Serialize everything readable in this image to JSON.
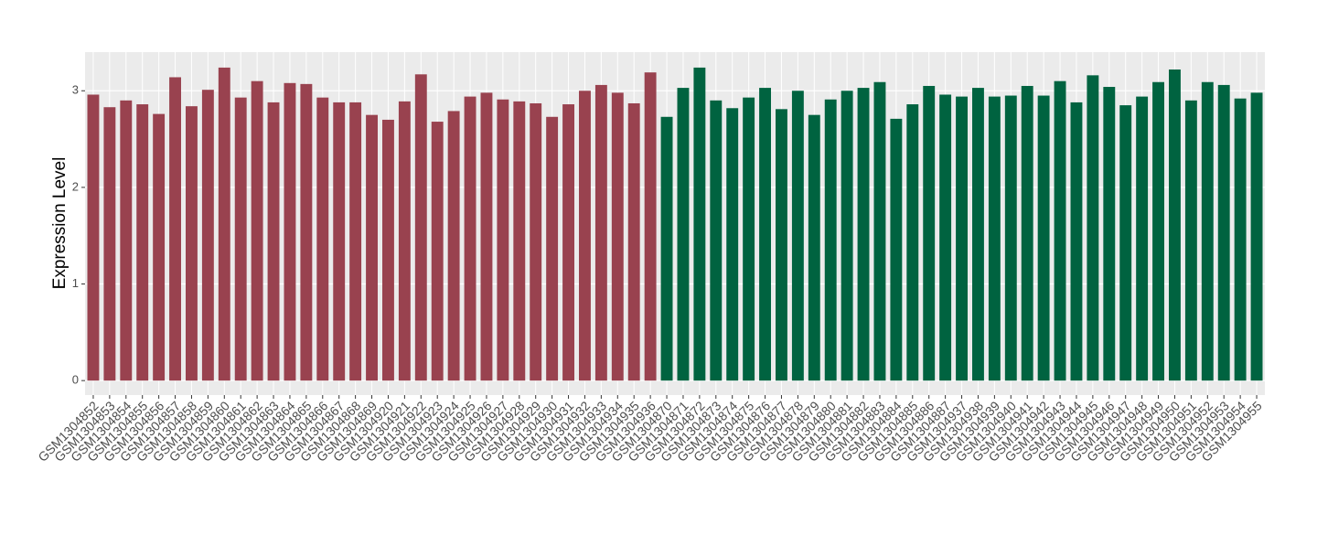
{
  "chart_data": {
    "type": "bar",
    "y_label": "Expression Level",
    "categories": [
      "GSM1304852",
      "GSM1304853",
      "GSM1304854",
      "GSM1304855",
      "GSM1304856",
      "GSM1304857",
      "GSM1304858",
      "GSM1304859",
      "GSM1304860",
      "GSM1304861",
      "GSM1304862",
      "GSM1304863",
      "GSM1304864",
      "GSM1304865",
      "GSM1304866",
      "GSM1304867",
      "GSM1304868",
      "GSM1304869",
      "GSM1304920",
      "GSM1304921",
      "GSM1304922",
      "GSM1304923",
      "GSM1304924",
      "GSM1304925",
      "GSM1304926",
      "GSM1304927",
      "GSM1304928",
      "GSM1304929",
      "GSM1304930",
      "GSM1304931",
      "GSM1304932",
      "GSM1304933",
      "GSM1304934",
      "GSM1304935",
      "GSM1304936",
      "GSM1304870",
      "GSM1304871",
      "GSM1304872",
      "GSM1304873",
      "GSM1304874",
      "GSM1304875",
      "GSM1304876",
      "GSM1304877",
      "GSM1304878",
      "GSM1304879",
      "GSM1304880",
      "GSM1304881",
      "GSM1304882",
      "GSM1304883",
      "GSM1304884",
      "GSM1304885",
      "GSM1304886",
      "GSM1304887",
      "GSM1304937",
      "GSM1304938",
      "GSM1304939",
      "GSM1304940",
      "GSM1304941",
      "GSM1304942",
      "GSM1304943",
      "GSM1304944",
      "GSM1304945",
      "GSM1304946",
      "GSM1304947",
      "GSM1304948",
      "GSM1304949",
      "GSM1304950",
      "GSM1304951",
      "GSM1304952",
      "GSM1304953",
      "GSM1304954",
      "GSM1304955"
    ],
    "series": [
      {
        "color": "#99424f",
        "values": [
          2.96,
          2.83,
          2.9,
          2.86,
          2.76,
          3.14,
          2.84,
          3.01,
          3.24,
          2.93,
          3.1,
          2.88,
          3.08,
          3.07,
          2.93,
          2.88,
          2.88,
          2.75,
          2.7,
          2.89,
          3.17,
          2.68,
          2.79,
          2.94,
          2.98,
          2.91,
          2.89,
          2.87,
          2.73,
          2.86,
          3.0,
          3.06,
          2.98,
          2.87,
          3.19,
          null,
          null,
          null,
          null,
          null,
          null,
          null,
          null,
          null,
          null,
          null,
          null,
          null,
          null,
          null,
          null,
          null,
          null,
          null,
          null,
          null,
          null,
          null,
          null,
          null,
          null,
          null,
          null,
          null,
          null,
          null,
          null,
          null,
          null,
          null,
          null,
          null
        ]
      },
      {
        "color": "#006340",
        "values": [
          null,
          null,
          null,
          null,
          null,
          null,
          null,
          null,
          null,
          null,
          null,
          null,
          null,
          null,
          null,
          null,
          null,
          null,
          null,
          null,
          null,
          null,
          null,
          null,
          null,
          null,
          null,
          null,
          null,
          null,
          null,
          null,
          null,
          null,
          null,
          2.73,
          3.03,
          3.24,
          2.9,
          2.82,
          2.93,
          3.03,
          2.81,
          3.0,
          2.75,
          2.91,
          3.0,
          3.03,
          3.09,
          2.71,
          2.86,
          3.05,
          2.96,
          2.94,
          3.03,
          2.94,
          2.95,
          3.05,
          2.95,
          3.1,
          2.88,
          3.16,
          3.04,
          2.85,
          2.94,
          3.09,
          3.22,
          2.9,
          3.09,
          3.06,
          2.92,
          2.98
        ]
      }
    ],
    "ylim": [
      -0.15,
      3.4
    ],
    "yticks": [
      0,
      1,
      2,
      3
    ],
    "grid": true
  }
}
